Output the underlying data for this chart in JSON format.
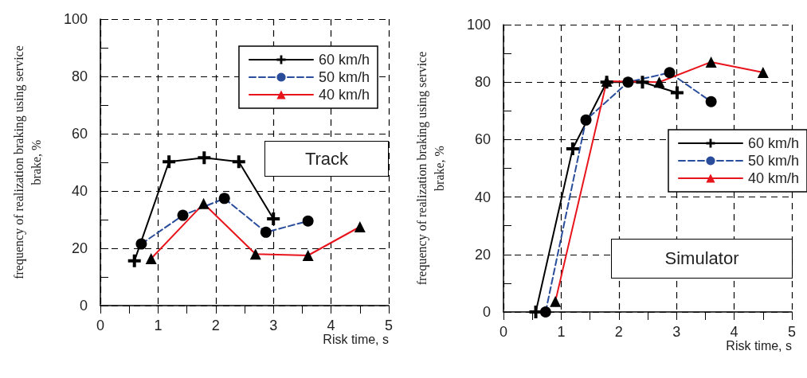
{
  "chart_data": [
    {
      "type": "line",
      "xlabel": "Risk time, s",
      "ylabel": "frequency of realization braking using service\nbrake, %",
      "annotations": [
        "Track"
      ],
      "xlim": [
        0,
        5
      ],
      "ylim": [
        0,
        100
      ],
      "xticks": [
        0,
        1,
        2,
        3,
        4,
        5
      ],
      "yticks": [
        0,
        20,
        40,
        60,
        80,
        100
      ],
      "grid": true,
      "legend": "top right",
      "series": [
        {
          "name": "60 km/h",
          "color": "#000000",
          "marker": "cross",
          "line_style": "solid",
          "x": [
            0.59,
            1.19,
            1.8,
            2.4,
            3.0
          ],
          "values": [
            15.6,
            50.2,
            51.6,
            50.2,
            30.3
          ]
        },
        {
          "name": "50 km/h",
          "color": "#2a4d9b",
          "marker": "circle",
          "line_style": "dashed",
          "x": [
            0.71,
            1.43,
            2.15,
            2.87,
            3.6
          ],
          "values": [
            21.5,
            31.5,
            37.4,
            25.6,
            29.5
          ]
        },
        {
          "name": "40 km/h",
          "color": "#e8141b",
          "marker": "triangle",
          "line_style": "solid",
          "x": [
            0.88,
            1.79,
            2.69,
            3.6,
            4.5
          ],
          "values": [
            16.4,
            35.6,
            18,
            17.5,
            27.5
          ]
        }
      ]
    },
    {
      "type": "line",
      "xlabel": "Risk time, s",
      "ylabel": "frequency of realization braking using service\nbrake, %",
      "annotations": [
        "Simulator"
      ],
      "xlim": [
        0,
        5
      ],
      "ylim": [
        0,
        100
      ],
      "xticks": [
        0,
        1,
        2,
        3,
        4,
        5
      ],
      "yticks": [
        0,
        20,
        40,
        60,
        80,
        100
      ],
      "grid": true,
      "legend": "right",
      "series": [
        {
          "name": "60 km/h",
          "color": "#000000",
          "marker": "cross",
          "line_style": "solid",
          "x": [
            0.56,
            1.2,
            1.79,
            2.41,
            3.01
          ],
          "values": [
            0,
            56.8,
            80,
            80,
            76.3
          ]
        },
        {
          "name": "50 km/h",
          "color": "#2a4d9b",
          "marker": "circle",
          "line_style": "dashed",
          "x": [
            0.73,
            1.43,
            2.16,
            2.88,
            3.6
          ],
          "values": [
            0,
            66.8,
            80,
            83.3,
            73.2
          ]
        },
        {
          "name": "40 km/h",
          "color": "#e8141b",
          "marker": "triangle",
          "line_style": "solid",
          "x": [
            0.9,
            1.79,
            2.7,
            3.6,
            4.5
          ],
          "values": [
            3.7,
            80.3,
            80,
            87,
            83.4
          ]
        }
      ]
    }
  ]
}
